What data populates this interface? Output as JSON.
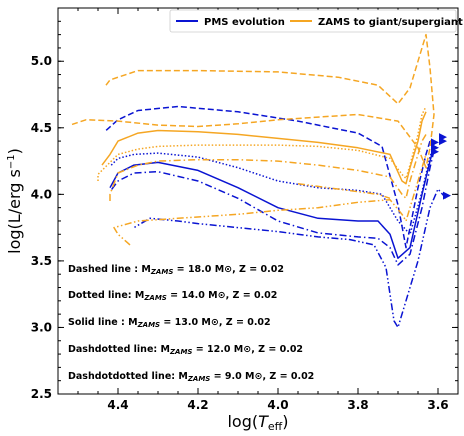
{
  "chart_data": {
    "type": "line",
    "xlabel": "log(T_eff)",
    "ylabel": "log(L/erg s^-1)",
    "xlim": [
      4.55,
      3.55
    ],
    "ylim": [
      2.5,
      5.4
    ],
    "x_inverted": true,
    "grid": false,
    "legend_position": "top-right",
    "xticks": [
      "4.4",
      "4.2",
      "4.0",
      "3.8",
      "3.6"
    ],
    "yticks": [
      "2.5",
      "3.0",
      "3.5",
      "4.0",
      "4.5",
      "5.0"
    ],
    "legend": [
      {
        "label": "PMS evolution",
        "color": "#0a14d2"
      },
      {
        "label": "ZAMS to giant/supergiant",
        "color": "#f5a623"
      }
    ],
    "annotations": [
      {
        "prefix": "Dashed line : M",
        "sub": "ZAMS",
        "suffix": " = 18.0 M⊙, Z = 0.02"
      },
      {
        "prefix": "Dotted line: M",
        "sub": "ZAMS",
        "suffix": " = 14.0 M⊙, Z = 0.02"
      },
      {
        "prefix": "Solid line : M",
        "sub": "ZAMS",
        "suffix": " = 13.0 M⊙, Z = 0.02"
      },
      {
        "prefix": "Dashdotted line: M",
        "sub": "ZAMS",
        "suffix": " = 12.0 M⊙, Z = 0.02"
      },
      {
        "prefix": "Dashdotdotted line: M",
        "sub": "ZAMS",
        "suffix": " = 9.0 M⊙, Z = 0.02"
      }
    ],
    "series": [
      {
        "phase": "PMS evolution",
        "mass": 18.0,
        "style": "dashed",
        "color": "#0a14d2",
        "points": [
          [
            3.62,
            4.4
          ],
          [
            3.63,
            4.3
          ],
          [
            3.65,
            4.05
          ],
          [
            3.68,
            3.6
          ],
          [
            3.7,
            3.92
          ],
          [
            3.74,
            4.36
          ],
          [
            3.8,
            4.46
          ],
          [
            3.95,
            4.55
          ],
          [
            4.1,
            4.62
          ],
          [
            4.25,
            4.66
          ],
          [
            4.35,
            4.63
          ],
          [
            4.4,
            4.56
          ],
          [
            4.43,
            4.48
          ]
        ]
      },
      {
        "phase": "PMS evolution",
        "mass": 14.0,
        "style": "dotted",
        "color": "#0a14d2",
        "points": [
          [
            3.61,
            4.38
          ],
          [
            3.62,
            4.28
          ],
          [
            3.64,
            4.02
          ],
          [
            3.67,
            3.7
          ],
          [
            3.7,
            3.8
          ],
          [
            3.74,
            4.0
          ],
          [
            3.8,
            4.03
          ],
          [
            3.9,
            4.05
          ],
          [
            4.0,
            4.1
          ],
          [
            4.1,
            4.2
          ],
          [
            4.2,
            4.28
          ],
          [
            4.3,
            4.31
          ],
          [
            4.36,
            4.3
          ],
          [
            4.4,
            4.27
          ],
          [
            4.42,
            4.21
          ]
        ]
      },
      {
        "phase": "PMS evolution",
        "mass": 13.0,
        "style": "solid",
        "color": "#0a14d2",
        "points": [
          [
            3.61,
            4.36
          ],
          [
            3.62,
            4.25
          ],
          [
            3.64,
            4.0
          ],
          [
            3.67,
            3.6
          ],
          [
            3.7,
            3.52
          ],
          [
            3.72,
            3.7
          ],
          [
            3.75,
            3.8
          ],
          [
            3.8,
            3.8
          ],
          [
            3.9,
            3.82
          ],
          [
            4.0,
            3.9
          ],
          [
            4.1,
            4.05
          ],
          [
            4.2,
            4.18
          ],
          [
            4.3,
            4.24
          ],
          [
            4.36,
            4.22
          ],
          [
            4.4,
            4.16
          ],
          [
            4.42,
            4.05
          ]
        ]
      },
      {
        "phase": "PMS evolution",
        "mass": 12.0,
        "style": "dashdot",
        "color": "#0a14d2",
        "points": [
          [
            3.61,
            4.33
          ],
          [
            3.62,
            4.2
          ],
          [
            3.64,
            3.9
          ],
          [
            3.67,
            3.55
          ],
          [
            3.7,
            3.47
          ],
          [
            3.72,
            3.6
          ],
          [
            3.75,
            3.67
          ],
          [
            3.8,
            3.68
          ],
          [
            3.9,
            3.71
          ],
          [
            4.0,
            3.8
          ],
          [
            4.1,
            3.97
          ],
          [
            4.2,
            4.1
          ],
          [
            4.3,
            4.17
          ],
          [
            4.36,
            4.16
          ],
          [
            4.4,
            4.1
          ],
          [
            4.42,
            4.02
          ]
        ]
      },
      {
        "phase": "PMS evolution",
        "mass": 9.0,
        "style": "dashdotdot",
        "color": "#0a14d2",
        "points": [
          [
            3.58,
            3.97
          ],
          [
            3.6,
            4.04
          ],
          [
            3.62,
            3.9
          ],
          [
            3.65,
            3.5
          ],
          [
            3.68,
            3.2
          ],
          [
            3.7,
            3.0
          ],
          [
            3.71,
            3.05
          ],
          [
            3.73,
            3.45
          ],
          [
            3.76,
            3.62
          ],
          [
            3.82,
            3.66
          ],
          [
            3.9,
            3.68
          ],
          [
            4.0,
            3.72
          ],
          [
            4.1,
            3.75
          ],
          [
            4.2,
            3.78
          ],
          [
            4.25,
            3.8
          ],
          [
            4.32,
            3.82
          ],
          [
            4.36,
            3.75
          ]
        ]
      },
      {
        "phase": "ZAMS to giant/supergiant",
        "mass": 18.0,
        "style": "dashed",
        "color": "#f5a623",
        "points": [
          [
            4.43,
            4.82
          ],
          [
            4.42,
            4.86
          ],
          [
            4.35,
            4.93
          ],
          [
            4.2,
            4.93
          ],
          [
            4.0,
            4.92
          ],
          [
            3.85,
            4.88
          ],
          [
            3.75,
            4.82
          ],
          [
            3.7,
            4.68
          ],
          [
            3.69,
            4.72
          ],
          [
            3.67,
            4.8
          ],
          [
            3.65,
            5.0
          ],
          [
            3.64,
            5.1
          ],
          [
            3.63,
            5.2
          ],
          [
            3.62,
            4.95
          ],
          [
            3.61,
            4.6
          ],
          [
            3.62,
            4.35
          ],
          [
            3.63,
            4.2
          ],
          [
            3.65,
            4.35
          ],
          [
            3.7,
            4.55
          ],
          [
            3.8,
            4.6
          ],
          [
            3.9,
            4.58
          ],
          [
            4.0,
            4.56
          ],
          [
            4.1,
            4.53
          ],
          [
            4.2,
            4.51
          ],
          [
            4.3,
            4.52
          ],
          [
            4.4,
            4.55
          ],
          [
            4.48,
            4.56
          ],
          [
            4.52,
            4.52
          ]
        ]
      },
      {
        "phase": "ZAMS to giant/supergiant",
        "mass": 14.0,
        "style": "dotted",
        "color": "#f5a623",
        "points": [
          [
            4.45,
            4.1
          ],
          [
            4.45,
            4.15
          ],
          [
            4.43,
            4.21
          ],
          [
            4.4,
            4.3
          ],
          [
            4.35,
            4.34
          ],
          [
            4.3,
            4.36
          ],
          [
            4.2,
            4.37
          ],
          [
            4.0,
            4.37
          ],
          [
            3.9,
            4.36
          ],
          [
            3.8,
            4.33
          ],
          [
            3.72,
            4.27
          ],
          [
            3.69,
            4.15
          ],
          [
            3.68,
            4.12
          ],
          [
            3.67,
            4.22
          ],
          [
            3.65,
            4.45
          ],
          [
            3.64,
            4.6
          ],
          [
            3.63,
            4.66
          ]
        ]
      },
      {
        "phase": "ZAMS to giant/supergiant",
        "mass": 13.0,
        "style": "solid",
        "color": "#f5a623",
        "points": [
          [
            4.44,
            4.22
          ],
          [
            4.42,
            4.3
          ],
          [
            4.4,
            4.4
          ],
          [
            4.35,
            4.46
          ],
          [
            4.3,
            4.48
          ],
          [
            4.2,
            4.47
          ],
          [
            4.1,
            4.45
          ],
          [
            4.0,
            4.42
          ],
          [
            3.9,
            4.39
          ],
          [
            3.8,
            4.35
          ],
          [
            3.72,
            4.3
          ],
          [
            3.69,
            4.1
          ],
          [
            3.68,
            4.08
          ],
          [
            3.67,
            4.2
          ],
          [
            3.65,
            4.4
          ],
          [
            3.64,
            4.55
          ],
          [
            3.63,
            4.62
          ]
        ]
      },
      {
        "phase": "ZAMS to giant/supergiant",
        "mass": 12.0,
        "style": "dashdot",
        "color": "#f5a623",
        "points": [
          [
            4.42,
            3.95
          ],
          [
            4.42,
            4.0
          ],
          [
            4.4,
            4.16
          ],
          [
            4.35,
            4.22
          ],
          [
            4.3,
            4.25
          ],
          [
            4.2,
            4.26
          ],
          [
            4.1,
            4.26
          ],
          [
            4.0,
            4.25
          ],
          [
            3.9,
            4.22
          ],
          [
            3.8,
            4.18
          ],
          [
            3.72,
            4.13
          ],
          [
            3.69,
            4.0
          ],
          [
            3.68,
            3.97
          ],
          [
            3.67,
            4.1
          ],
          [
            3.65,
            4.3
          ],
          [
            3.64,
            4.4
          ],
          [
            3.63,
            4.45
          ]
        ]
      },
      {
        "phase": "ZAMS to giant/supergiant",
        "mass": 9.0,
        "style": "dashdotdot",
        "color": "#f5a623",
        "points": [
          [
            4.37,
            3.62
          ],
          [
            4.4,
            3.7
          ],
          [
            4.41,
            3.75
          ],
          [
            4.35,
            3.8
          ],
          [
            4.25,
            3.82
          ],
          [
            4.1,
            3.85
          ],
          [
            4.0,
            3.88
          ],
          [
            3.9,
            3.9
          ],
          [
            3.8,
            3.94
          ],
          [
            3.72,
            3.96
          ],
          [
            3.69,
            3.85
          ],
          [
            3.68,
            3.8
          ],
          [
            3.67,
            3.9
          ],
          [
            3.65,
            4.1
          ],
          [
            3.64,
            4.2
          ],
          [
            3.63,
            4.3
          ]
        ]
      },
      {
        "phase": "ZAMS to giant/supergiant",
        "mass": 9.0,
        "style": "dashdotdot",
        "color": "#f5a623",
        "points": [
          [
            3.95,
            4.08
          ],
          [
            3.9,
            4.06
          ],
          [
            3.8,
            4.02
          ],
          [
            3.75,
            4.0
          ],
          [
            3.72,
            3.97
          ]
        ]
      }
    ],
    "markers": {
      "shape": "triangle-right",
      "color": "#0a14d2",
      "points": [
        [
          3.59,
          4.43
        ],
        [
          3.59,
          4.4
        ],
        [
          3.61,
          4.39
        ],
        [
          3.61,
          4.35
        ],
        [
          3.61,
          4.32
        ],
        [
          3.58,
          3.99
        ]
      ]
    }
  }
}
